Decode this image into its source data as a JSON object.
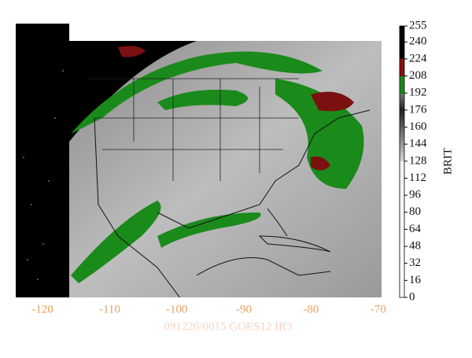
{
  "map": {
    "caption": "091226/0015 GOES12 IR3",
    "xlim": [
      -124,
      -69.5
    ],
    "xticks": [
      -120,
      -110,
      -100,
      -90,
      -80,
      -70
    ],
    "colorbar": {
      "label": "BRIT",
      "lim": [
        0,
        255
      ],
      "ticks": [
        0,
        16,
        32,
        48,
        64,
        80,
        96,
        112,
        128,
        144,
        160,
        176,
        192,
        208,
        224,
        240,
        255
      ]
    }
  }
}
